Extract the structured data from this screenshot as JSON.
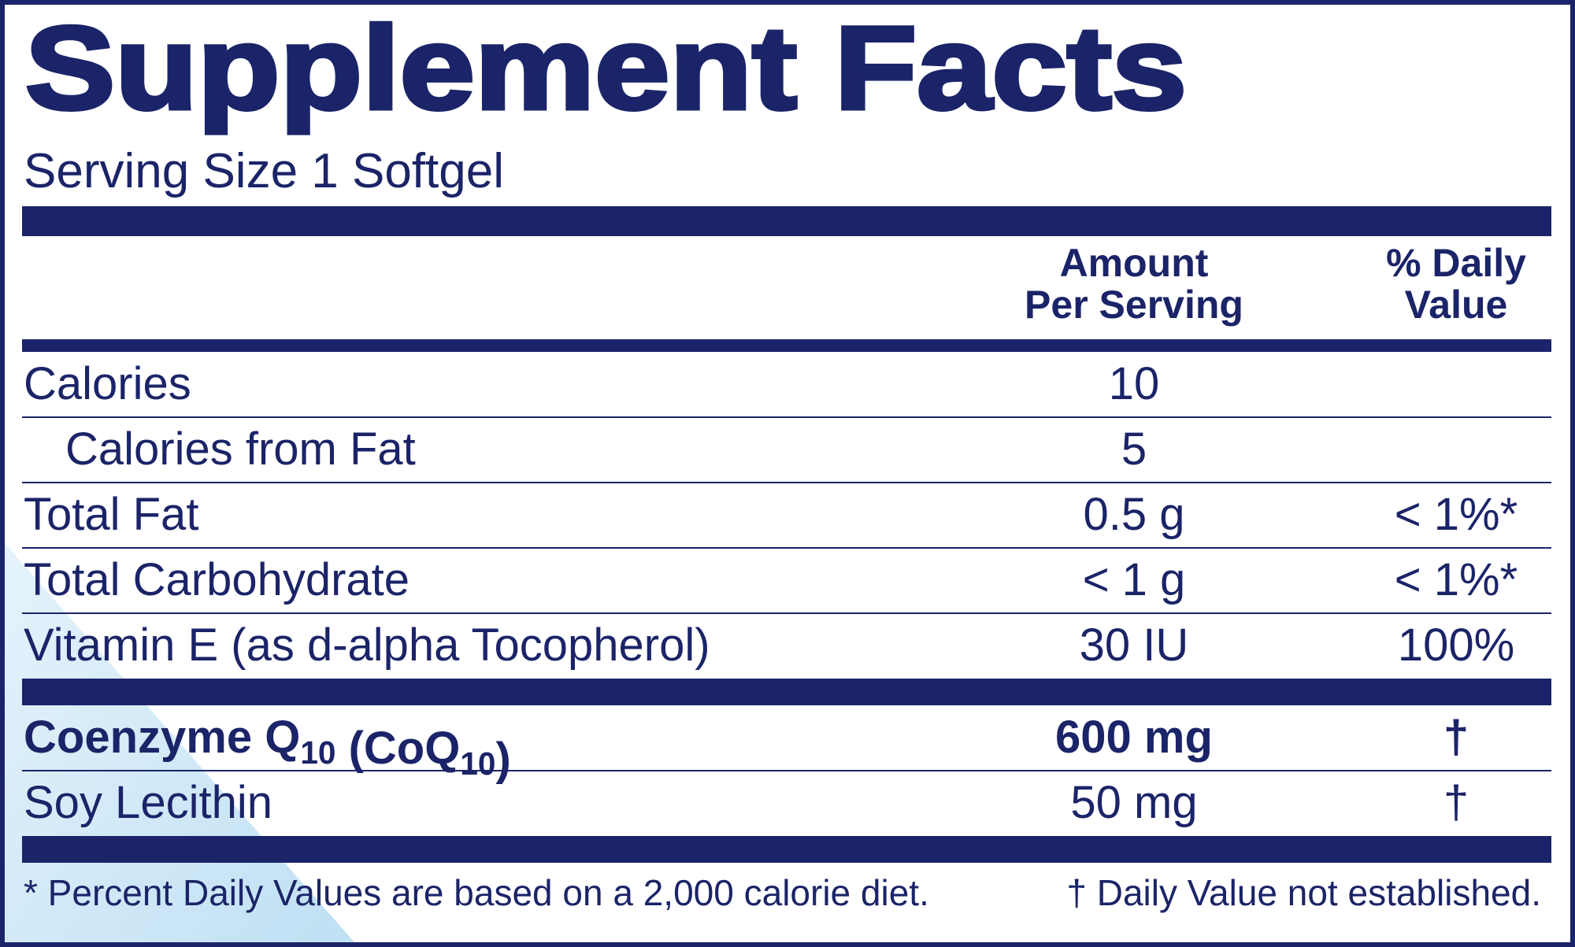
{
  "title": "Supplement Facts",
  "serving_size": "Serving Size 1 Softgel",
  "amount_header": [
    "Amount",
    "Per Serving"
  ],
  "dv_header": [
    "% Daily",
    "Value"
  ],
  "sections": [
    [
      {
        "name": [
          {
            "text": "Calories"
          }
        ],
        "amount": "10"
      },
      {
        "name": [
          {
            "text": "Calories from Fat"
          }
        ],
        "amount": "5"
      },
      {
        "name": [
          {
            "text": "Total Fat"
          }
        ],
        "amount": "0.5 g",
        "dv": "< 1%*"
      },
      {
        "name": [
          {
            "text": "Total Carbohydrate"
          }
        ],
        "amount": "< 1 g",
        "dv": "< 1%*"
      },
      {
        "name": [
          {
            "text": "Vitamin E (as d-alpha Tocopherol)"
          }
        ],
        "amount": "30 IU",
        "dv": "100%"
      }
    ],
    [
      {
        "name": [
          {
            "text": "Coenzyme Q"
          },
          {
            "sub": "10"
          },
          {
            "text": " (CoQ"
          },
          {
            "sub": "10"
          },
          {
            "text": ")"
          }
        ],
        "amount": "600 mg",
        "dv": "†"
      },
      {
        "name": [
          {
            "text": "Soy Lecithin"
          }
        ],
        "amount": "50 mg",
        "dv": "†"
      }
    ]
  ],
  "footnotes": [
    "* Percent Daily Values are based on a 2,000 calorie diet.",
    "† Daily Value not established."
  ]
}
